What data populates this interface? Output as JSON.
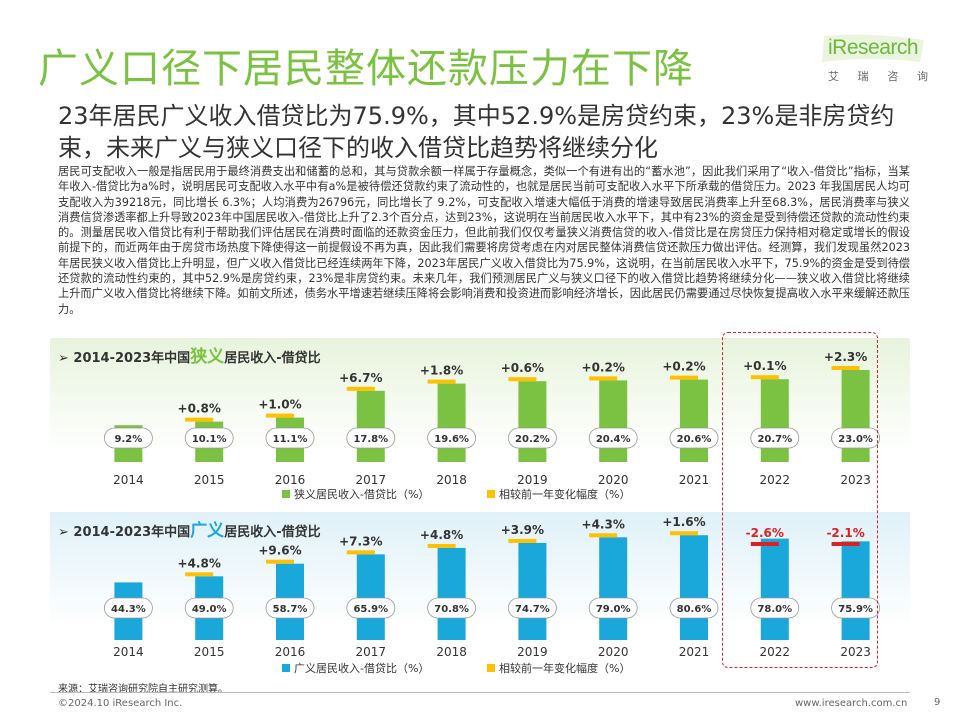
{
  "page": {
    "title": "广义口径下居民整体还款压力在下降",
    "subtitle": "23年居民广义收入借贷比为75.9%，其中52.9%是房贷约束，23%是非房贷约束，未来广义与狭义口径下的收入借贷比趋势将继续分化",
    "body": "居民可支配收入一般是指居民用于最终消费支出和储蓄的总和，其与贷款余额一样属于存量概念，类似一个有进有出的“蓄水池”，因此我们采用了“收入-借贷比”指标，当某年收入-借贷比为a%时，说明居民可支配收入水平中有a%是被待偿还贷款约束了流动性的，也就是居民当前可支配收入水平下所承载的借贷压力。2023 年我国居民人均可支配收入为39218元，同比增长 6.3%；人均消费为26796元，同比增长了 9.2%，可支配收入增速大幅低于消费的增速导致居民消费率上升至68.3%，居民消费率与狭义消费信贷渗透率都上升导致2023年中国居民收入-借贷比上升了2.3个百分点，达到23%，这说明在当前居民收入水平下，其中有23%的资金是受到待偿还贷款的流动性约束的。测量居民收入借贷比有利于帮助我们评估居民在消费时面临的还款资金压力，但此前我们仅仅考量狭义消费信贷的收入-借贷比是在房贷压力保持相对稳定或增长的假设前提下的，而近两年由于房贷市场热度下降使得这一前提假设不再为真，因此我们需要将房贷考虑在内对居民整体消费信贷还款压力做出评估。经测算，我们发现虽然2023年居民狭义收入借贷比上升明显，但广义收入借贷比已经连续两年下降，2023年居民广义收入借贷比为75.9%，这说明，在当前居民收入水平下，75.9%的资金是受到待偿还贷款的流动性约束的，其中52.9%是房贷约束，23%是非房贷约束。未来几年，我们预测居民广义与狭义口径下的收入借贷比趋势将继续分化——狭义收入借贷比将继续上升而广义收入借贷比将继续下降。如前文所述，债务水平增速若继续压降将会影响消费和投资进而影响经济增长，因此居民仍需要通过尽快恢复提高收入水平来缓解还款压力。",
    "source": "来源：艾瑞咨询研究院自主研究测算。",
    "copyright": "©2024.10 iResearch Inc.",
    "website": "www.iresearch.com.cn",
    "page_number": "9"
  },
  "logo": {
    "wordmark": "iResearch",
    "sub": [
      "艾",
      "瑞",
      "咨",
      "询"
    ]
  },
  "colors": {
    "title": "#7cc242",
    "narrow_bar": "#7cc242",
    "broad_bar": "#1aa7d9",
    "change_positive": "#ffc000",
    "change_negative": "#e02020",
    "highlight_box": "#e02020"
  },
  "chart_data": [
    {
      "type": "bar",
      "title_prefix": "➢ 2014-2023年中国",
      "title_highlight": "狭义",
      "title_suffix": "居民收入-借贷比",
      "categories": [
        "2014",
        "2015",
        "2016",
        "2017",
        "2018",
        "2019",
        "2020",
        "2021",
        "2022",
        "2023"
      ],
      "series": [
        {
          "name": "狭义居民收入-借贷比（%）",
          "values": [
            9.2,
            10.1,
            11.1,
            17.8,
            19.6,
            20.2,
            20.4,
            20.6,
            20.7,
            23.0
          ],
          "labels": [
            "9.2%",
            "10.1%",
            "11.1%",
            "17.8%",
            "19.6%",
            "20.2%",
            "20.4%",
            "20.6%",
            "20.7%",
            "23.0%"
          ]
        },
        {
          "name": "相较前一年变化幅度（%）",
          "values": [
            null,
            0.8,
            1.0,
            6.7,
            1.8,
            0.6,
            0.2,
            0.2,
            0.1,
            2.3
          ],
          "labels": [
            "",
            "+0.8%",
            "+1.0%",
            "+6.7%",
            "+1.8%",
            "+0.6%",
            "+0.2%",
            "+0.2%",
            "+0.1%",
            "+2.3%"
          ]
        }
      ]
    },
    {
      "type": "bar",
      "title_prefix": "➢ 2014-2023年中国",
      "title_highlight": "广义",
      "title_suffix": "居民收入-借贷比",
      "categories": [
        "2014",
        "2015",
        "2016",
        "2017",
        "2018",
        "2019",
        "2020",
        "2021",
        "2022",
        "2023"
      ],
      "series": [
        {
          "name": "广义居民收入-借贷比（%）",
          "values": [
            44.3,
            49.0,
            58.7,
            65.9,
            70.8,
            74.7,
            79.0,
            80.6,
            78.0,
            75.9
          ],
          "labels": [
            "44.3%",
            "49.0%",
            "58.7%",
            "65.9%",
            "70.8%",
            "74.7%",
            "79.0%",
            "80.6%",
            "78.0%",
            "75.9%"
          ]
        },
        {
          "name": "相较前一年变化幅度（%）",
          "values": [
            null,
            4.8,
            9.6,
            7.3,
            4.8,
            3.9,
            4.3,
            1.6,
            -2.6,
            -2.1
          ],
          "labels": [
            "",
            "+4.8%",
            "+9.6%",
            "+7.3%",
            "+4.8%",
            "+3.9%",
            "+4.3%",
            "+1.6%",
            "-2.6%",
            "-2.1%"
          ]
        }
      ]
    }
  ]
}
